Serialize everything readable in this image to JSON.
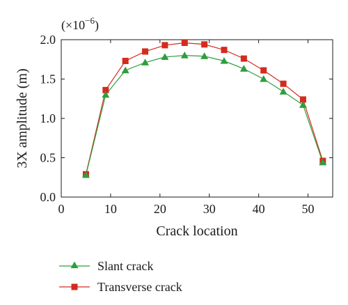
{
  "chart_data": {
    "type": "line",
    "ylabel": "3X amplitude (m)",
    "xlabel": "Crack location",
    "y_multiplier": "(×10",
    "y_multiplier_exp": "−6",
    "y_multiplier_close": ")",
    "xlim": [
      0,
      55
    ],
    "ylim": [
      0,
      2.0
    ],
    "xticks": [
      0,
      10,
      20,
      30,
      40,
      50
    ],
    "yticks": [
      0.0,
      0.5,
      1.0,
      1.5,
      2.0
    ],
    "xtick_labels": [
      "0",
      "10",
      "20",
      "30",
      "40",
      "50"
    ],
    "ytick_labels": [
      "0.0",
      "0.5",
      "1.0",
      "1.5",
      "2.0"
    ],
    "grid": false,
    "legend_position": "bottom-left, outside plot",
    "x": [
      5,
      9,
      13,
      17,
      21,
      25,
      29,
      33,
      37,
      41,
      45,
      49,
      53
    ],
    "series": [
      {
        "name": "Slant crack",
        "marker": "triangle",
        "color": "#2e9e3e",
        "values": [
          0.28,
          1.3,
          1.61,
          1.71,
          1.78,
          1.8,
          1.79,
          1.73,
          1.63,
          1.5,
          1.34,
          1.17,
          0.44
        ]
      },
      {
        "name": "Transverse crack",
        "marker": "square",
        "color": "#d42b1e",
        "values": [
          0.29,
          1.36,
          1.73,
          1.85,
          1.93,
          1.96,
          1.94,
          1.87,
          1.76,
          1.61,
          1.44,
          1.24,
          0.46
        ]
      }
    ]
  }
}
